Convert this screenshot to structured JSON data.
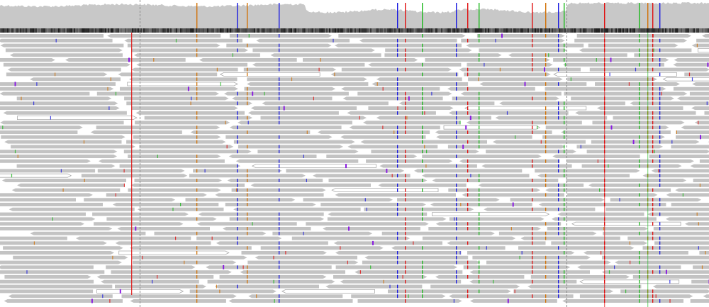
{
  "colors": {
    "background": "#ffffff",
    "coverage": "#c8c8c8",
    "read_fill": "#c3c3c3",
    "read_outline": "#aaaaaa",
    "guide_line": "#8a8a8a",
    "reference_dark": "#1e1e1e",
    "reference_light": "#7a7a7a",
    "mismatch_A": "#1db81d",
    "mismatch_C": "#1a1ae0",
    "mismatch_G": "#d17105",
    "mismatch_T": "#e01010",
    "insertion": "#8a1ce0",
    "deletion": "#000000"
  },
  "icons": {
    "read_direction": "arrow-tip",
    "insertion_marker": "i-beam"
  },
  "view": {
    "track_type": "alignment-pileup",
    "coverage_visible": true,
    "reference_sequence_visible": true,
    "center_guides_visible": true
  }
}
